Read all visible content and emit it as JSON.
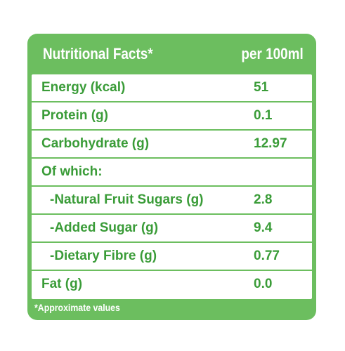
{
  "header": {
    "title": "Nutritional Facts*",
    "per": "per 100ml"
  },
  "rows": [
    {
      "label": "Energy (kcal)",
      "value": "51"
    },
    {
      "label": "Protein (g)",
      "value": "0.1"
    },
    {
      "label": "Carbohydrate (g)",
      "value": "12.97"
    },
    {
      "label": "Of which:",
      "value": ""
    },
    {
      "label": "-Natural Fruit Sugars (g)",
      "value": "2.8"
    },
    {
      "label": "-Added Sugar (g)",
      "value": "9.4"
    },
    {
      "label": "-Dietary Fibre (g)",
      "value": "0.77"
    },
    {
      "label": "Fat (g)",
      "value": "0.0"
    }
  ],
  "footnote": "*Approximate values",
  "colors": {
    "panel_green": "#6cbe5f",
    "text_green": "#3a9c38",
    "background": "#ffffff"
  }
}
